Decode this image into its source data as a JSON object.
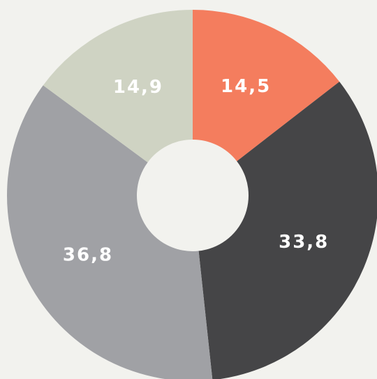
{
  "chart_data": {
    "type": "pie",
    "values": [
      14.5,
      33.8,
      36.8,
      14.9
    ],
    "value_labels": [
      "14,5",
      "33,8",
      "36,8",
      "14,9"
    ],
    "colors": [
      "#f47d5e",
      "#454547",
      "#a0a1a5",
      "#cfd3c3"
    ]
  }
}
